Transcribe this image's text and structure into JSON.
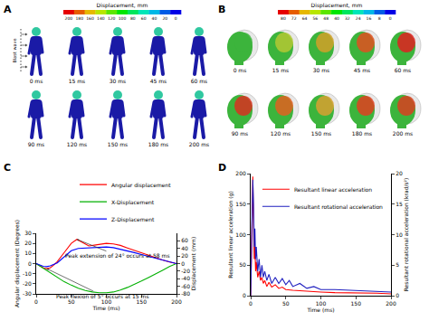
{
  "figures": [
    {
      "title": "A",
      "colorbar": {
        "label": "Displacement, mm",
        "ticks": [
          200,
          180,
          160,
          140,
          120,
          100,
          80,
          60,
          40,
          20,
          0
        ]
      },
      "annotation": "Blast wave",
      "frames": [
        "0 ms",
        "15 ms",
        "30 ms",
        "45 ms",
        "60 ms",
        "90 ms",
        "120 ms",
        "150 ms",
        "180 ms",
        "200 ms"
      ]
    },
    {
      "title": "B",
      "colorbar": {
        "label": "Displacement, mm",
        "ticks": [
          80,
          72,
          64,
          56,
          48,
          40,
          32,
          24,
          16,
          8,
          0
        ]
      },
      "frames": [
        "0 ms",
        "15 ms",
        "30 ms",
        "45 ms",
        "60 ms",
        "90 ms",
        "120 ms",
        "150 ms",
        "180 ms",
        "200 ms"
      ]
    }
  ],
  "chart_data": [
    {
      "type": "line",
      "title": "C",
      "xlabel": "Time (ms)",
      "ylabel": "Angular displacement (Degrees)",
      "y2label": "Displacement (mm)",
      "xlim": [
        0,
        200
      ],
      "xticks": [
        0,
        50,
        100,
        150,
        200
      ],
      "ylim": [
        -30,
        30
      ],
      "yticks": [
        -30,
        -20,
        -10,
        0,
        10,
        20,
        30
      ],
      "y2lim": [
        -80,
        80
      ],
      "y2ticks": [
        -80,
        -60,
        -40,
        -20,
        0,
        20,
        40,
        60
      ],
      "grid": false,
      "legend": "top",
      "series": [
        {
          "name": "Angular displacement",
          "color": "#ff0000",
          "x": [
            0,
            5,
            10,
            15,
            20,
            25,
            30,
            40,
            50,
            58,
            65,
            75,
            85,
            100,
            110,
            120,
            130,
            140,
            150,
            160,
            170,
            180,
            190,
            200
          ],
          "values": [
            0,
            -2.5,
            -4.3,
            -5,
            -4.2,
            -1.5,
            2,
            11,
            20,
            24,
            21.5,
            17.5,
            18.5,
            20,
            19.5,
            18,
            15.5,
            13,
            10.5,
            8,
            5.5,
            3.5,
            1.5,
            0
          ]
        },
        {
          "name": "X-Displacement",
          "color": "#00b000",
          "axis": "y2",
          "x": [
            0,
            10,
            20,
            30,
            40,
            50,
            60,
            70,
            80,
            90,
            100,
            110,
            120,
            130,
            140,
            150,
            160,
            170,
            180,
            190,
            200
          ],
          "values": [
            0,
            -12,
            -25,
            -37,
            -48,
            -57,
            -65,
            -71,
            -75,
            -77,
            -77,
            -75,
            -70,
            -63,
            -55,
            -46,
            -37,
            -28,
            -18,
            -8,
            0
          ]
        },
        {
          "name": "Z-Displacement",
          "color": "#0000ff",
          "axis": "y2",
          "x": [
            0,
            5,
            10,
            15,
            20,
            30,
            40,
            50,
            60,
            70,
            80,
            90,
            100,
            110,
            120,
            130,
            140,
            150,
            160,
            170,
            180,
            190,
            200
          ],
          "values": [
            0,
            -4,
            -7,
            -8,
            -6,
            2,
            18,
            34,
            40,
            41,
            42,
            43,
            44,
            42,
            38,
            34,
            29,
            24,
            19,
            14,
            9,
            4,
            0
          ]
        }
      ],
      "annotations": [
        {
          "text": "Peak extension of 24° occurs at 58 ms",
          "x": 58,
          "y": 24
        },
        {
          "text": "Peak flexion of 5° occurs at 15 ms",
          "x": 15,
          "y": -5
        }
      ]
    },
    {
      "type": "line",
      "title": "D",
      "xlabel": "Time (ms)",
      "ylabel": "Resultant linear acceleration (g)",
      "y2label": "Resultant rotational acceleration (krad/s²)",
      "xlim": [
        0,
        200
      ],
      "xticks": [
        0,
        50,
        100,
        150,
        200
      ],
      "ylim": [
        0,
        200
      ],
      "yticks": [
        0,
        50,
        100,
        150,
        200
      ],
      "y2lim": [
        0,
        20
      ],
      "y2ticks": [
        0,
        5,
        10,
        15,
        20
      ],
      "grid": false,
      "legend": "top right",
      "series": [
        {
          "name": "Resultant linear acceleration",
          "color": "#ff0000",
          "x": [
            0,
            1,
            2,
            3,
            4,
            5,
            6,
            7,
            8,
            10,
            12,
            14,
            16,
            18,
            20,
            23,
            26,
            30,
            35,
            40,
            45,
            50,
            60,
            70,
            80,
            90,
            100,
            120,
            140,
            160,
            180,
            200
          ],
          "values": [
            0,
            60,
            150,
            195,
            120,
            60,
            80,
            40,
            55,
            30,
            40,
            25,
            30,
            20,
            25,
            15,
            22,
            14,
            18,
            12,
            14,
            10,
            9,
            8,
            7,
            6,
            6,
            5,
            5,
            4,
            4,
            3
          ]
        },
        {
          "name": "Resultant rotational acceleration",
          "color": "#1f1fbf",
          "axis": "y2",
          "x": [
            0,
            1,
            2,
            3,
            4,
            5,
            6,
            7,
            8,
            10,
            12,
            14,
            16,
            18,
            20,
            23,
            26,
            30,
            35,
            40,
            45,
            50,
            55,
            60,
            70,
            80,
            90,
            100,
            120,
            140,
            160,
            180,
            200
          ],
          "values": [
            0,
            5,
            14,
            19,
            15,
            8,
            11,
            6,
            8,
            4,
            6,
            3,
            5,
            3,
            4,
            2.5,
            3.5,
            2,
            3,
            2,
            2.8,
            1.8,
            2.5,
            1.5,
            2,
            1.2,
            1.5,
            1,
            1,
            0.9,
            0.8,
            0.8,
            0.6
          ]
        }
      ]
    }
  ]
}
